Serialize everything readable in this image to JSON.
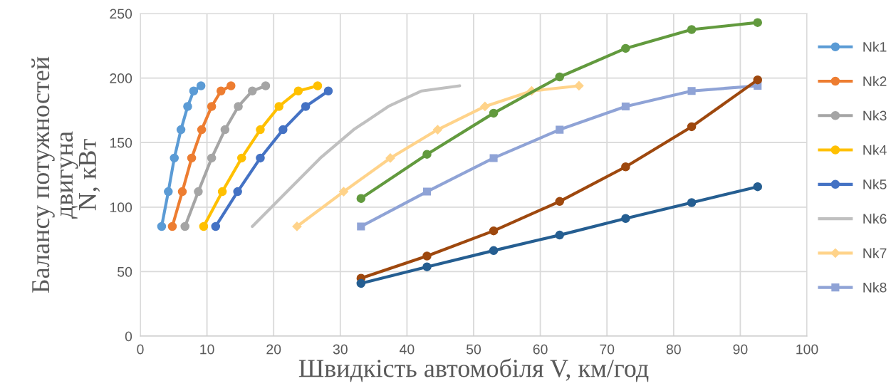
{
  "chart_data": {
    "type": "line",
    "xlabel": "Швидкість автомобіля V, км/год",
    "ylabel": "Балансу потужностей\nдвигуна\nN, кВт",
    "xlim": [
      0,
      100
    ],
    "xticks": [
      0,
      10,
      20,
      30,
      40,
      50,
      60,
      70,
      80,
      90,
      100
    ],
    "ylim": [
      0,
      250
    ],
    "yticks": [
      0,
      50,
      100,
      150,
      200,
      250
    ],
    "grid": true,
    "legend": "right",
    "line_style": "solid",
    "series": [
      {
        "name": "Nk1",
        "color": "#5b9bd5",
        "marker": "circle",
        "x": [
          3.2,
          4.2,
          5.1,
          6.1,
          7.1,
          8.0,
          9.1
        ],
        "values": [
          85,
          112,
          138,
          160,
          178,
          190,
          194
        ]
      },
      {
        "name": "Nk2",
        "color": "#ed7d31",
        "marker": "circle",
        "x": [
          4.8,
          6.3,
          7.7,
          9.2,
          10.7,
          12.1,
          13.6
        ],
        "values": [
          85,
          112,
          138,
          160,
          178,
          190,
          194
        ]
      },
      {
        "name": "Nk3",
        "color": "#a5a5a5",
        "marker": "circle",
        "x": [
          6.7,
          8.7,
          10.7,
          12.7,
          14.7,
          16.8,
          18.8
        ],
        "values": [
          85,
          112,
          138,
          160,
          178,
          190,
          194
        ]
      },
      {
        "name": "Nk4",
        "color": "#ffc000",
        "marker": "circle",
        "x": [
          9.5,
          12.3,
          15.2,
          18.0,
          20.8,
          23.7,
          26.6
        ],
        "values": [
          85,
          112,
          138,
          160,
          178,
          190,
          194
        ]
      },
      {
        "name": "Nk5",
        "color": "#4472c4",
        "marker": "circle",
        "x": [
          11.3,
          14.6,
          18.0,
          21.4,
          24.8,
          28.2
        ],
        "values": [
          85,
          112,
          138,
          160,
          178,
          190
        ]
      },
      {
        "name": "Nk6",
        "color": "#c0c0c0",
        "marker": "none",
        "x": [
          16.8,
          22.0,
          27.0,
          32.0,
          37.2,
          42.2,
          47.9
        ],
        "values": [
          85,
          112,
          138,
          160,
          178,
          190,
          194
        ]
      },
      {
        "name": "Nk7",
        "color": "#ffd38a",
        "marker": "diamond",
        "x": [
          23.5,
          30.5,
          37.5,
          44.6,
          51.7,
          58.7,
          65.8
        ],
        "values": [
          85,
          112,
          138,
          160,
          178,
          190,
          194
        ]
      },
      {
        "name": "Nk8",
        "color": "#8fa3d6",
        "marker": "square",
        "x": [
          33.1,
          43.0,
          53.0,
          62.9,
          72.8,
          82.7,
          92.6
        ],
        "values": [
          85,
          112,
          138,
          160,
          178,
          190,
          194
        ]
      },
      {
        "color": "#629a3e",
        "marker": "circle",
        "x": [
          33.1,
          43.0,
          53.0,
          62.9,
          72.8,
          82.7,
          92.6
        ],
        "values": [
          106.7,
          140.9,
          172.8,
          200.9,
          223,
          237.6,
          243
        ]
      },
      {
        "color": "#9e480e",
        "marker": "circle",
        "x": [
          33.1,
          43.0,
          53.0,
          62.9,
          72.8,
          82.7,
          92.6
        ],
        "values": [
          44.9,
          62.1,
          81.6,
          104.4,
          131.2,
          162.3,
          198.6
        ]
      },
      {
        "color": "#255e91",
        "marker": "circle",
        "x": [
          33.1,
          43.0,
          53.0,
          62.9,
          72.8,
          82.7,
          92.6
        ],
        "values": [
          40.9,
          53.7,
          66.3,
          78.3,
          91.2,
          103.5,
          115.8
        ]
      }
    ]
  }
}
